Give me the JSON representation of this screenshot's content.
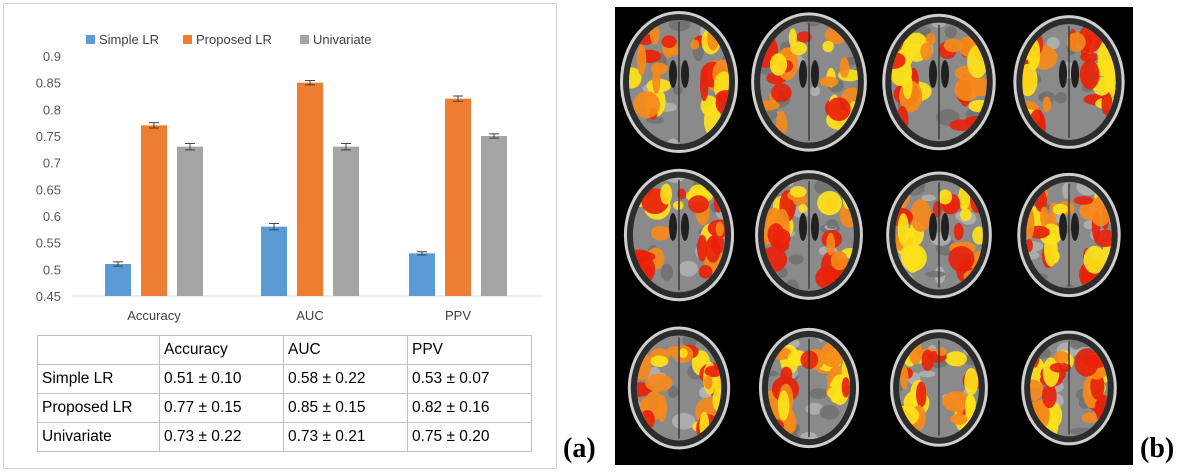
{
  "chart_data": {
    "type": "bar",
    "categories": [
      "Accuracy",
      "AUC",
      "PPV"
    ],
    "series": [
      {
        "name": "Simple LR",
        "values": [
          0.51,
          0.58,
          0.53
        ],
        "errors": [
          0.004,
          0.006,
          0.003
        ],
        "color": "#5b9bd5"
      },
      {
        "name": "Proposed LR",
        "values": [
          0.77,
          0.85,
          0.82
        ],
        "errors": [
          0.005,
          0.004,
          0.005
        ],
        "color": "#ed7d31"
      },
      {
        "name": "Univariate",
        "values": [
          0.73,
          0.73,
          0.75
        ],
        "errors": [
          0.006,
          0.006,
          0.004
        ],
        "color": "#a5a5a5"
      }
    ],
    "ylim": [
      0.45,
      0.9
    ],
    "yticks": [
      "0.45",
      "0.5",
      "0.55",
      "0.6",
      "0.65",
      "0.7",
      "0.75",
      "0.8",
      "0.85",
      "0.9"
    ],
    "grid": false,
    "legend": "top"
  },
  "table": {
    "header": [
      "",
      "Accuracy",
      "AUC",
      "PPV"
    ],
    "rows": [
      [
        "Simple LR",
        "0.51 ± 0.10",
        "0.58 ± 0.22",
        "0.53 ± 0.07"
      ],
      [
        "Proposed LR",
        "0.77 ± 0.15",
        "0.85 ± 0.15",
        "0.82 ± 0.16"
      ],
      [
        "Univariate",
        "0.73 ± 0.22",
        "0.73 ± 0.21",
        "0.75 ± 0.20"
      ]
    ]
  },
  "labels": {
    "a": "(a)",
    "b": "(b)"
  },
  "brain_panel": {
    "rows": 3,
    "cols": 4,
    "overlay_colors": [
      "#e8220a",
      "#f58a1a",
      "#ffe21a"
    ]
  }
}
